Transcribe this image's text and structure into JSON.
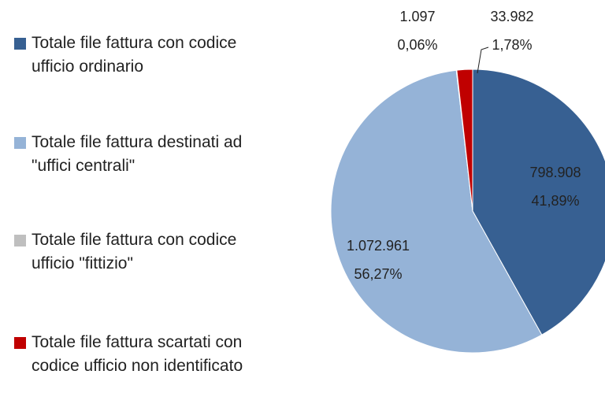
{
  "chart_data": {
    "type": "pie",
    "categories": [
      "Totale file fattura con codice ufficio ordinario",
      "Totale file fattura destinati ad \"uffici centrali\"",
      "Totale file fattura con codice ufficio \"fittizio\"",
      "Totale file fattura scartati con codice ufficio non identificato"
    ],
    "values": [
      798908,
      1072961,
      1097,
      33982
    ],
    "value_labels": [
      "798.908",
      "1.072.961",
      "1.097",
      "33.982"
    ],
    "percentages": [
      41.89,
      56.27,
      0.06,
      1.78
    ],
    "percentage_labels": [
      "41,89%",
      "56,27%",
      "0,06%",
      "1,78%"
    ],
    "colors": [
      "#376092",
      "#95b3d7",
      "#bfbfbf",
      "#c00000"
    ]
  }
}
